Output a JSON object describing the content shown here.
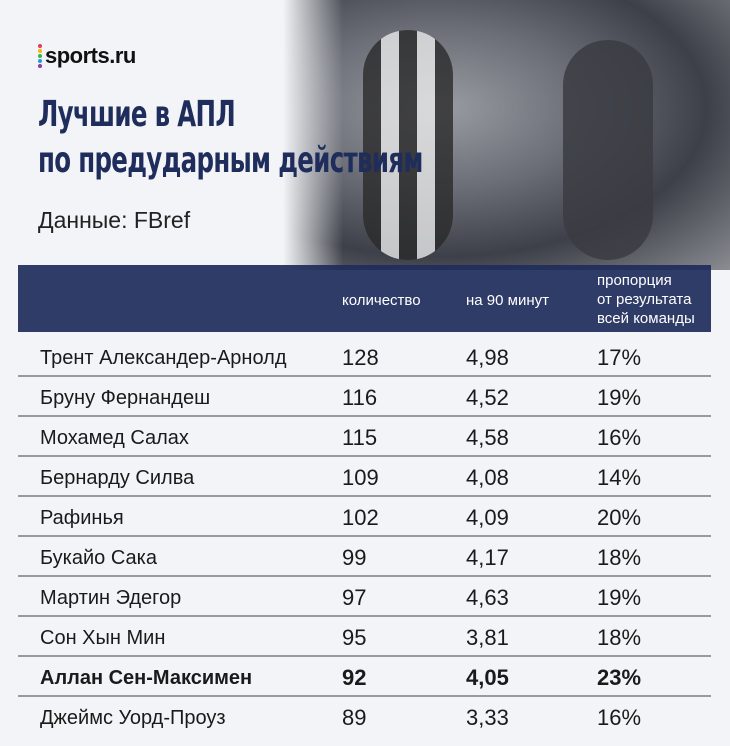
{
  "logo": {
    "text": "sports.ru",
    "dot_colors": [
      "#e63a5b",
      "#f5b800",
      "#3ab54a",
      "#1f9be0",
      "#8a3d9c"
    ]
  },
  "title_lines": [
    "Лучшие в АПЛ",
    "по предударным действиям"
  ],
  "source": "Данные: FBref",
  "colors": {
    "header_bg": "#1f2d5c",
    "title": "#1f2d5c",
    "background": "#f3f4f7"
  },
  "chart_data": {
    "type": "table",
    "columns": [
      "",
      "количество",
      "на 90 минут",
      [
        "пропорция",
        "от результата",
        "всей команды"
      ]
    ],
    "rows": [
      {
        "name": "Трент Александер-Арнолд",
        "count": "128",
        "per90": "4,98",
        "share": "17%",
        "highlight": false
      },
      {
        "name": "Бруну Фернандеш",
        "count": "116",
        "per90": "4,52",
        "share": "19%",
        "highlight": false
      },
      {
        "name": "Мохамед Салах",
        "count": "115",
        "per90": "4,58",
        "share": "16%",
        "highlight": false
      },
      {
        "name": "Бернарду Силва",
        "count": "109",
        "per90": "4,08",
        "share": "14%",
        "highlight": false
      },
      {
        "name": "Рафинья",
        "count": "102",
        "per90": "4,09",
        "share": "20%",
        "highlight": false
      },
      {
        "name": "Букайо Сака",
        "count": "99",
        "per90": "4,17",
        "share": "18%",
        "highlight": false
      },
      {
        "name": "Мартин Эдегор",
        "count": "97",
        "per90": "4,63",
        "share": "19%",
        "highlight": false
      },
      {
        "name": "Сон Хын Мин",
        "count": "95",
        "per90": "3,81",
        "share": "18%",
        "highlight": false
      },
      {
        "name": "Аллан Сен-Максимен",
        "count": "92",
        "per90": "4,05",
        "share": "23%",
        "highlight": true
      },
      {
        "name": "Джеймс Уорд-Проуз",
        "count": "89",
        "per90": "3,33",
        "share": "16%",
        "highlight": false
      }
    ]
  }
}
